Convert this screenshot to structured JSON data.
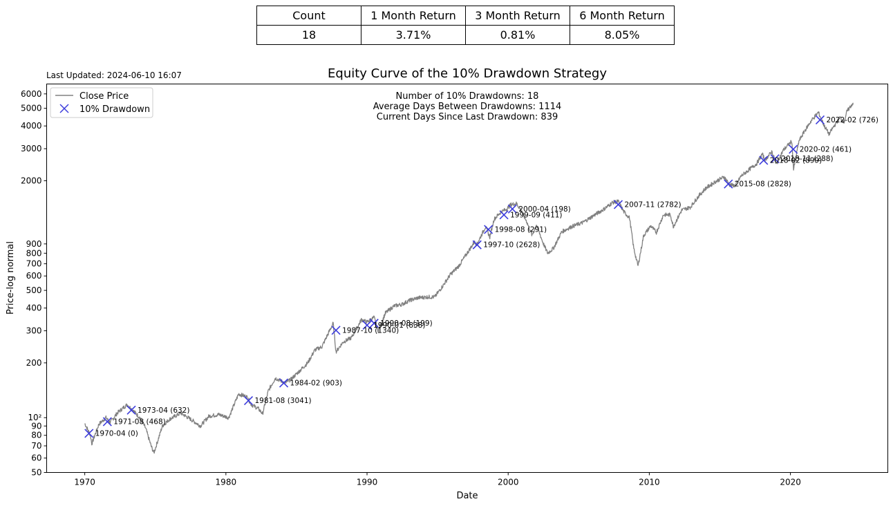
{
  "stats_table": {
    "headers": [
      "Count",
      "1 Month Return",
      "3 Month Return",
      "6 Month Return"
    ],
    "values": [
      "18",
      "3.71%",
      "0.81%",
      "8.05%"
    ]
  },
  "last_updated": "Last Updated: 2024-06-10 16:07",
  "info": {
    "line1": "Number of 10% Drawdowns: 18",
    "line2": "Average Days Between Drawdowns: 1114",
    "line3": "Current Days Since Last Drawdown: 839"
  },
  "chart_data": {
    "type": "line",
    "title": "Equity Curve of the 10% Drawdown Strategy",
    "xlabel": "Date",
    "ylabel": "Price-log normal",
    "xlim": [
      1967.3,
      2026.9
    ],
    "ylim": [
      50,
      6800
    ],
    "yscale": "log",
    "x_ticks": [
      1970,
      1980,
      1990,
      2000,
      2010,
      2020
    ],
    "y_ticks": [
      {
        "value": 50,
        "label": "50"
      },
      {
        "value": 60,
        "label": "60"
      },
      {
        "value": 70,
        "label": "70"
      },
      {
        "value": 80,
        "label": "80"
      },
      {
        "value": 90,
        "label": "90"
      },
      {
        "value": 100,
        "label": "10²"
      },
      {
        "value": 200,
        "label": "200"
      },
      {
        "value": 300,
        "label": "300"
      },
      {
        "value": 400,
        "label": "400"
      },
      {
        "value": 500,
        "label": "500"
      },
      {
        "value": 600,
        "label": "600"
      },
      {
        "value": 700,
        "label": "700"
      },
      {
        "value": 800,
        "label": "800"
      },
      {
        "value": 900,
        "label": "900"
      },
      {
        "value": 2000,
        "label": "2000"
      },
      {
        "value": 3000,
        "label": "3000"
      },
      {
        "value": 4000,
        "label": "4000"
      },
      {
        "value": 5000,
        "label": "5000"
      },
      {
        "value": 6000,
        "label": "6000"
      }
    ],
    "grid": false,
    "legend_position": "top-left",
    "series": [
      {
        "name": "Close Price",
        "color": "#808080",
        "points": [
          [
            1970.0,
            93
          ],
          [
            1970.4,
            80
          ],
          [
            1970.5,
            72
          ],
          [
            1971.0,
            92
          ],
          [
            1971.5,
            100
          ],
          [
            1971.8,
            94
          ],
          [
            1972.3,
            106
          ],
          [
            1973.0,
            118
          ],
          [
            1973.5,
            108
          ],
          [
            1973.9,
            100
          ],
          [
            1974.3,
            88
          ],
          [
            1974.7,
            70
          ],
          [
            1974.9,
            64
          ],
          [
            1975.5,
            90
          ],
          [
            1976.0,
            98
          ],
          [
            1976.8,
            106
          ],
          [
            1977.5,
            98
          ],
          [
            1978.2,
            90
          ],
          [
            1978.8,
            102
          ],
          [
            1979.5,
            104
          ],
          [
            1980.2,
            100
          ],
          [
            1980.9,
            135
          ],
          [
            1981.5,
            130
          ],
          [
            1981.8,
            118
          ],
          [
            1982.3,
            112
          ],
          [
            1982.6,
            105
          ],
          [
            1983.0,
            140
          ],
          [
            1983.5,
            165
          ],
          [
            1984.2,
            155
          ],
          [
            1984.6,
            162
          ],
          [
            1985.2,
            180
          ],
          [
            1985.8,
            200
          ],
          [
            1986.3,
            235
          ],
          [
            1986.8,
            245
          ],
          [
            1987.6,
            330
          ],
          [
            1987.8,
            230
          ],
          [
            1988.3,
            260
          ],
          [
            1988.9,
            275
          ],
          [
            1989.6,
            345
          ],
          [
            1990.0,
            335
          ],
          [
            1990.5,
            355
          ],
          [
            1990.8,
            300
          ],
          [
            1991.3,
            375
          ],
          [
            1991.9,
            410
          ],
          [
            1992.5,
            420
          ],
          [
            1993.0,
            440
          ],
          [
            1993.6,
            455
          ],
          [
            1994.3,
            460
          ],
          [
            1994.8,
            460
          ],
          [
            1995.3,
            520
          ],
          [
            1995.9,
            610
          ],
          [
            1996.5,
            680
          ],
          [
            1997.0,
            780
          ],
          [
            1997.6,
            920
          ],
          [
            1997.8,
            900
          ],
          [
            1998.4,
            1120
          ],
          [
            1998.7,
            980
          ],
          [
            1999.0,
            1230
          ],
          [
            1999.5,
            1350
          ],
          [
            1999.9,
            1400
          ],
          [
            2000.2,
            1480
          ],
          [
            2000.6,
            1500
          ],
          [
            2000.9,
            1380
          ],
          [
            2001.3,
            1200
          ],
          [
            2001.7,
            1000
          ],
          [
            2002.0,
            1150
          ],
          [
            2002.5,
            900
          ],
          [
            2002.8,
            800
          ],
          [
            2003.2,
            850
          ],
          [
            2003.8,
            1050
          ],
          [
            2004.5,
            1120
          ],
          [
            2005.3,
            1180
          ],
          [
            2006.0,
            1280
          ],
          [
            2006.8,
            1400
          ],
          [
            2007.4,
            1520
          ],
          [
            2007.8,
            1540
          ],
          [
            2008.2,
            1350
          ],
          [
            2008.6,
            1250
          ],
          [
            2008.9,
            850
          ],
          [
            2009.2,
            680
          ],
          [
            2009.6,
            1000
          ],
          [
            2010.1,
            1130
          ],
          [
            2010.5,
            1040
          ],
          [
            2011.0,
            1300
          ],
          [
            2011.5,
            1300
          ],
          [
            2011.7,
            1120
          ],
          [
            2012.3,
            1380
          ],
          [
            2012.9,
            1430
          ],
          [
            2013.5,
            1650
          ],
          [
            2014.0,
            1820
          ],
          [
            2014.7,
            1980
          ],
          [
            2015.3,
            2100
          ],
          [
            2015.7,
            1900
          ],
          [
            2016.1,
            1880
          ],
          [
            2016.5,
            2120
          ],
          [
            2017.0,
            2280
          ],
          [
            2017.6,
            2480
          ],
          [
            2018.0,
            2800
          ],
          [
            2018.2,
            2600
          ],
          [
            2018.7,
            2900
          ],
          [
            2018.98,
            2450
          ],
          [
            2019.5,
            2950
          ],
          [
            2020.1,
            3300
          ],
          [
            2020.22,
            2300
          ],
          [
            2020.6,
            3300
          ],
          [
            2021.0,
            3750
          ],
          [
            2021.5,
            4300
          ],
          [
            2021.98,
            4750
          ],
          [
            2022.4,
            4000
          ],
          [
            2022.75,
            3600
          ],
          [
            2023.0,
            3900
          ],
          [
            2023.5,
            4450
          ],
          [
            2023.8,
            4200
          ],
          [
            2024.0,
            4800
          ],
          [
            2024.44,
            5360
          ]
        ]
      }
    ],
    "drawdowns": {
      "name": "10% Drawdown",
      "color": "#3c3cdc",
      "points": [
        {
          "x": 1970.3,
          "y": 82,
          "label": "1970-04 (0)"
        },
        {
          "x": 1971.6,
          "y": 95,
          "label": "1971-08 (468)"
        },
        {
          "x": 1973.3,
          "y": 110,
          "label": "1973-04 (632)"
        },
        {
          "x": 1981.6,
          "y": 124,
          "label": "1981-08 (3041)"
        },
        {
          "x": 1984.1,
          "y": 155,
          "label": "1984-02 (903)"
        },
        {
          "x": 1987.8,
          "y": 302,
          "label": "1987-10 (1340)"
        },
        {
          "x": 1990.0,
          "y": 322,
          "label": "1990-01 (838)"
        },
        {
          "x": 1990.5,
          "y": 330,
          "label": "1990-08 (199)"
        },
        {
          "x": 1997.8,
          "y": 890,
          "label": "1997-10 (2628)"
        },
        {
          "x": 1998.6,
          "y": 1080,
          "label": "1998-08 (291)"
        },
        {
          "x": 1999.7,
          "y": 1300,
          "label": "1999-09 (411)"
        },
        {
          "x": 2000.3,
          "y": 1400,
          "label": "2000-04 (198)"
        },
        {
          "x": 2007.8,
          "y": 1480,
          "label": "2007-11 (2782)"
        },
        {
          "x": 2015.6,
          "y": 1920,
          "label": "2015-08 (2828)"
        },
        {
          "x": 2018.1,
          "y": 2590,
          "label": "2018-02 (899)"
        },
        {
          "x": 2018.9,
          "y": 2640,
          "label": "2018-11 (288)"
        },
        {
          "x": 2020.2,
          "y": 2980,
          "label": "2020-02 (461)"
        },
        {
          "x": 2022.1,
          "y": 4320,
          "label": "2022-02 (726)"
        }
      ]
    }
  }
}
